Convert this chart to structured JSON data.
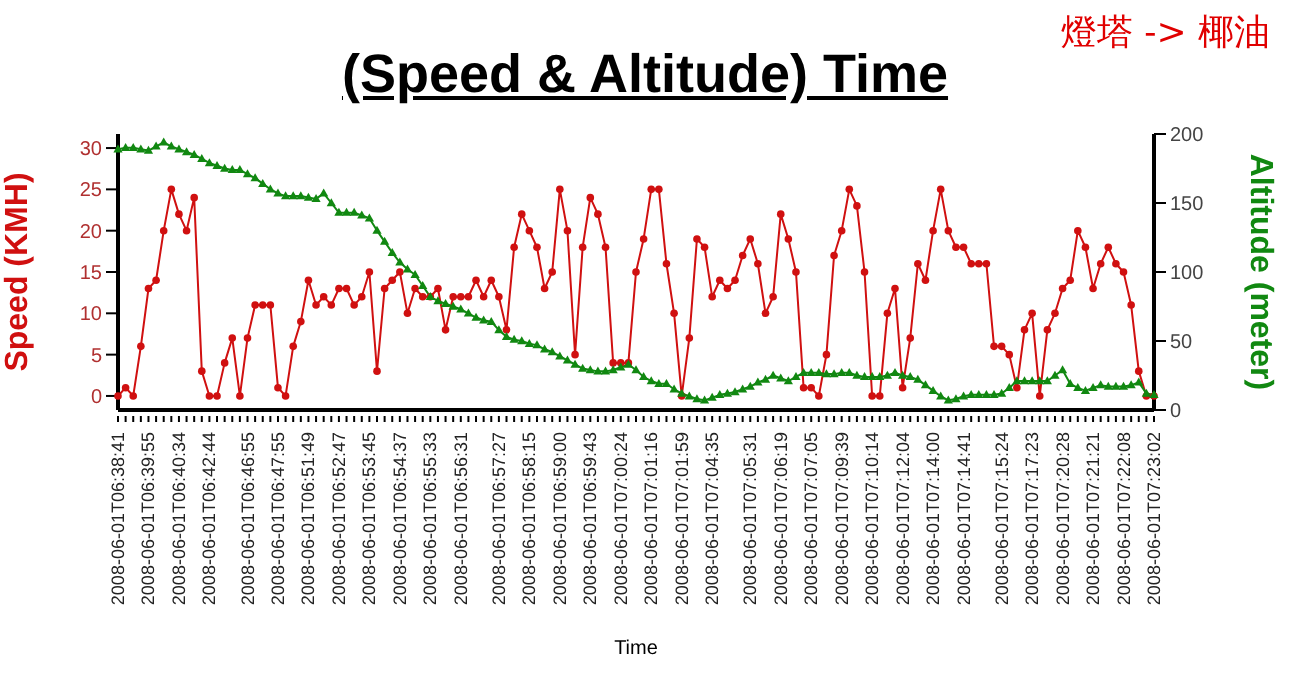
{
  "chart_data": {
    "type": "line",
    "title": "(Speed & Altitude) Time",
    "xlabel": "Time",
    "ylabel": "Speed (KMH)",
    "y2label": "Altitude (meter)",
    "annotations": [
      "燈塔 -> 椰油"
    ],
    "categories": [
      "2008-06-01T06:38:41",
      null,
      null,
      null,
      "2008-06-01T06:39:55",
      null,
      null,
      null,
      "2008-06-01T06:40:34",
      null,
      null,
      null,
      "2008-06-01T06:42:44",
      null,
      null,
      null,
      null,
      "2008-06-01T06:46:55",
      null,
      null,
      null,
      "2008-06-01T06:47:55",
      null,
      null,
      null,
      "2008-06-01T06:51:49",
      null,
      null,
      null,
      "2008-06-01T06:52:47",
      null,
      null,
      null,
      "2008-06-01T06:53:45",
      null,
      null,
      null,
      "2008-06-01T06:54:37",
      null,
      null,
      null,
      "2008-06-01T06:55:33",
      null,
      null,
      null,
      "2008-06-01T06:56:31",
      null,
      null,
      null,
      null,
      "2008-06-01T06:57:27",
      null,
      null,
      null,
      "2008-06-01T06:58:15",
      null,
      null,
      null,
      "2008-06-01T06:59:00",
      null,
      null,
      null,
      "2008-06-01T06:59:43",
      null,
      null,
      null,
      "2008-06-01T07:00:24",
      null,
      null,
      null,
      "2008-06-01T07:01:16",
      null,
      null,
      null,
      "2008-06-01T07:01:59",
      null,
      null,
      null,
      "2008-06-01T07:04:35",
      null,
      null,
      null,
      null,
      "2008-06-01T07:05:31",
      null,
      null,
      null,
      "2008-06-01T07:06:19",
      null,
      null,
      null,
      "2008-06-01T07:07:05",
      null,
      null,
      null,
      "2008-06-01T07:09:39",
      null,
      null,
      null,
      "2008-06-01T07:10:14",
      null,
      null,
      null,
      "2008-06-01T07:12:04",
      null,
      null,
      null,
      "2008-06-01T07:14:00",
      null,
      null,
      null,
      "2008-06-01T07:14:41",
      null,
      null,
      null,
      null,
      "2008-06-01T07:15:24",
      null,
      null,
      null,
      "2008-06-01T07:17:23",
      null,
      null,
      null,
      "2008-06-01T07:20:28",
      null,
      null,
      null,
      "2008-06-01T07:21:21",
      null,
      null,
      null,
      "2008-06-01T07:22:08",
      null,
      null,
      null,
      "2008-06-01T07:23:02"
    ],
    "series": [
      {
        "name": null,
        "color": "#d01010",
        "marker": "circle",
        "values": [
          0,
          1,
          0,
          6,
          13,
          14,
          20,
          25,
          22,
          20,
          24,
          3,
          0,
          0,
          4,
          7,
          0,
          7,
          11,
          11,
          11,
          1,
          0,
          6,
          9,
          14,
          11,
          12,
          11,
          13,
          13,
          11,
          12,
          15,
          3,
          13,
          14,
          15,
          10,
          13,
          12,
          12,
          13,
          8,
          12,
          12,
          12,
          14,
          12,
          14,
          12,
          8,
          18,
          22,
          20,
          18,
          13,
          15,
          25,
          20,
          5,
          18,
          24,
          22,
          18,
          4,
          4,
          4,
          15,
          19,
          25,
          25,
          16,
          10,
          0,
          7,
          19,
          18,
          12,
          14,
          13,
          14,
          17,
          19,
          16,
          10,
          12,
          22,
          19,
          15,
          1,
          1,
          0,
          5,
          17,
          20,
          25,
          23,
          15,
          0,
          0,
          10,
          13,
          1,
          7,
          16,
          14,
          20,
          25,
          20,
          18,
          18,
          16,
          16,
          16,
          6,
          6,
          5,
          1,
          8,
          10,
          0,
          8,
          10,
          13,
          14,
          20,
          18,
          13,
          16,
          18,
          16,
          15,
          11,
          3,
          0,
          0
        ]
      },
      {
        "name": null,
        "color": "#118811",
        "marker": "triangle",
        "axis": "y2",
        "values": [
          189,
          190,
          190,
          189,
          188,
          191,
          194,
          191,
          189,
          187,
          185,
          182,
          179,
          177,
          175,
          174,
          174,
          171,
          168,
          164,
          160,
          157,
          155,
          155,
          155,
          154,
          153,
          157,
          150,
          143,
          143,
          143,
          141,
          139,
          130,
          122,
          114,
          107,
          102,
          98,
          90,
          82,
          79,
          77,
          75,
          73,
          70,
          67,
          65,
          64,
          58,
          53,
          51,
          50,
          48,
          47,
          44,
          42,
          39,
          36,
          33,
          30,
          29,
          28,
          28,
          29,
          31,
          33,
          29,
          24,
          21,
          19,
          19,
          15,
          12,
          10,
          8,
          7,
          9,
          11,
          12,
          13,
          15,
          17,
          20,
          22,
          25,
          23,
          21,
          24,
          27,
          27,
          27,
          26,
          26,
          27,
          27,
          25,
          24,
          24,
          24,
          25,
          27,
          25,
          24,
          22,
          18,
          14,
          10,
          7,
          8,
          10,
          11,
          11,
          11,
          11,
          12,
          16,
          21,
          21,
          21,
          21,
          21,
          25,
          29,
          19,
          16,
          14,
          16,
          18,
          17,
          17,
          17,
          18,
          20,
          12,
          11
        ]
      }
    ],
    "ylim": [
      -1.7,
      31.7
    ],
    "yticks": [
      0,
      5,
      10,
      15,
      20,
      25,
      30
    ],
    "y2lim": [
      0,
      200
    ],
    "y2ticks": [
      0,
      50,
      100,
      150,
      200
    ]
  }
}
